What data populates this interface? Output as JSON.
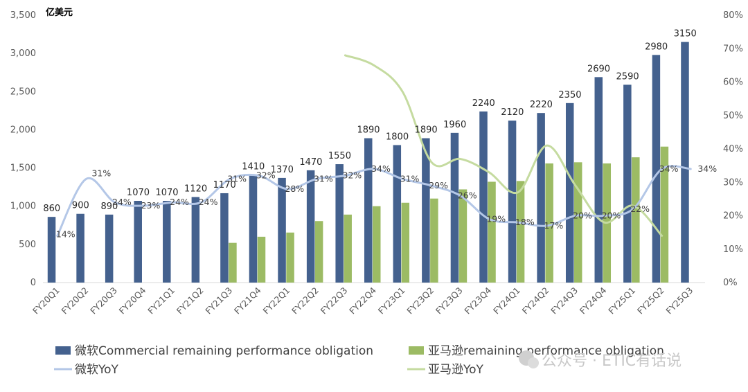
{
  "chart_data": {
    "type": "bar",
    "unit_label": "亿美元",
    "categories": [
      "FY20Q1",
      "FY20Q2",
      "FY20Q3",
      "FY20Q4",
      "FY21Q1",
      "FY21Q2",
      "FY21Q3",
      "FY21Q4",
      "FY22Q1",
      "FY22Q2",
      "FY22Q3",
      "FY22Q4",
      "FY23Q1",
      "FY23Q2",
      "FY23Q3",
      "FY23Q4",
      "FY24Q1",
      "FY24Q2",
      "FY24Q3",
      "FY24Q4",
      "FY25Q1",
      "FY25Q2",
      "FY25Q3"
    ],
    "y_left": {
      "min": 0,
      "max": 3500,
      "ticks": [
        "0",
        "500",
        "1,000",
        "1,500",
        "2,000",
        "2,500",
        "3,000",
        "3,500"
      ]
    },
    "y_right": {
      "min": 0,
      "max": 0.8,
      "ticks": [
        "0%",
        "10%",
        "20%",
        "30%",
        "40%",
        "50%",
        "60%",
        "70%",
        "80%"
      ]
    },
    "series": [
      {
        "name": "微软Commercial remaining performance obligation",
        "kind": "bar",
        "color": "#44618e",
        "values": [
          860,
          900,
          890,
          1070,
          1070,
          1120,
          1170,
          1410,
          1370,
          1470,
          1550,
          1890,
          1800,
          1890,
          1960,
          2240,
          2120,
          2220,
          2350,
          2690,
          2590,
          2980,
          3150
        ]
      },
      {
        "name": "亚马逊remaining performance obligation",
        "kind": "bar",
        "color": "#9cbb64",
        "values": [
          null,
          null,
          null,
          null,
          null,
          null,
          520,
          600,
          655,
          805,
          890,
          1000,
          1045,
          1100,
          1220,
          1320,
          1330,
          1560,
          1575,
          1560,
          1640,
          1780,
          null
        ]
      },
      {
        "name": "微软YoY",
        "kind": "line",
        "axis": "right",
        "color": "#b4c7e7",
        "values": [
          0.14,
          0.31,
          0.24,
          0.23,
          0.24,
          0.24,
          0.31,
          0.32,
          0.28,
          0.31,
          0.32,
          0.34,
          0.31,
          0.29,
          0.26,
          0.19,
          0.18,
          0.17,
          0.2,
          0.2,
          0.22,
          0.34,
          0.34
        ],
        "labels": [
          "14%",
          "31%",
          "24%",
          "23%",
          "24%",
          "24%",
          "31%",
          "32%",
          "28%",
          "31%",
          "32%",
          "34%",
          "31%",
          "29%",
          "26%",
          "19%",
          "18%",
          "17%",
          "20%",
          "20%",
          "22%",
          "34%",
          "34%"
        ]
      },
      {
        "name": "亚马逊YoY",
        "kind": "line",
        "axis": "right",
        "color": "#c5dba0",
        "values": [
          null,
          null,
          null,
          null,
          null,
          null,
          null,
          null,
          null,
          null,
          0.68,
          0.65,
          0.57,
          0.36,
          0.37,
          0.33,
          0.27,
          0.41,
          0.29,
          0.18,
          0.23,
          0.14,
          null
        ]
      }
    ],
    "legend_position": "bottom",
    "grid": false
  },
  "watermark": "公众号 · ETIC有话说"
}
